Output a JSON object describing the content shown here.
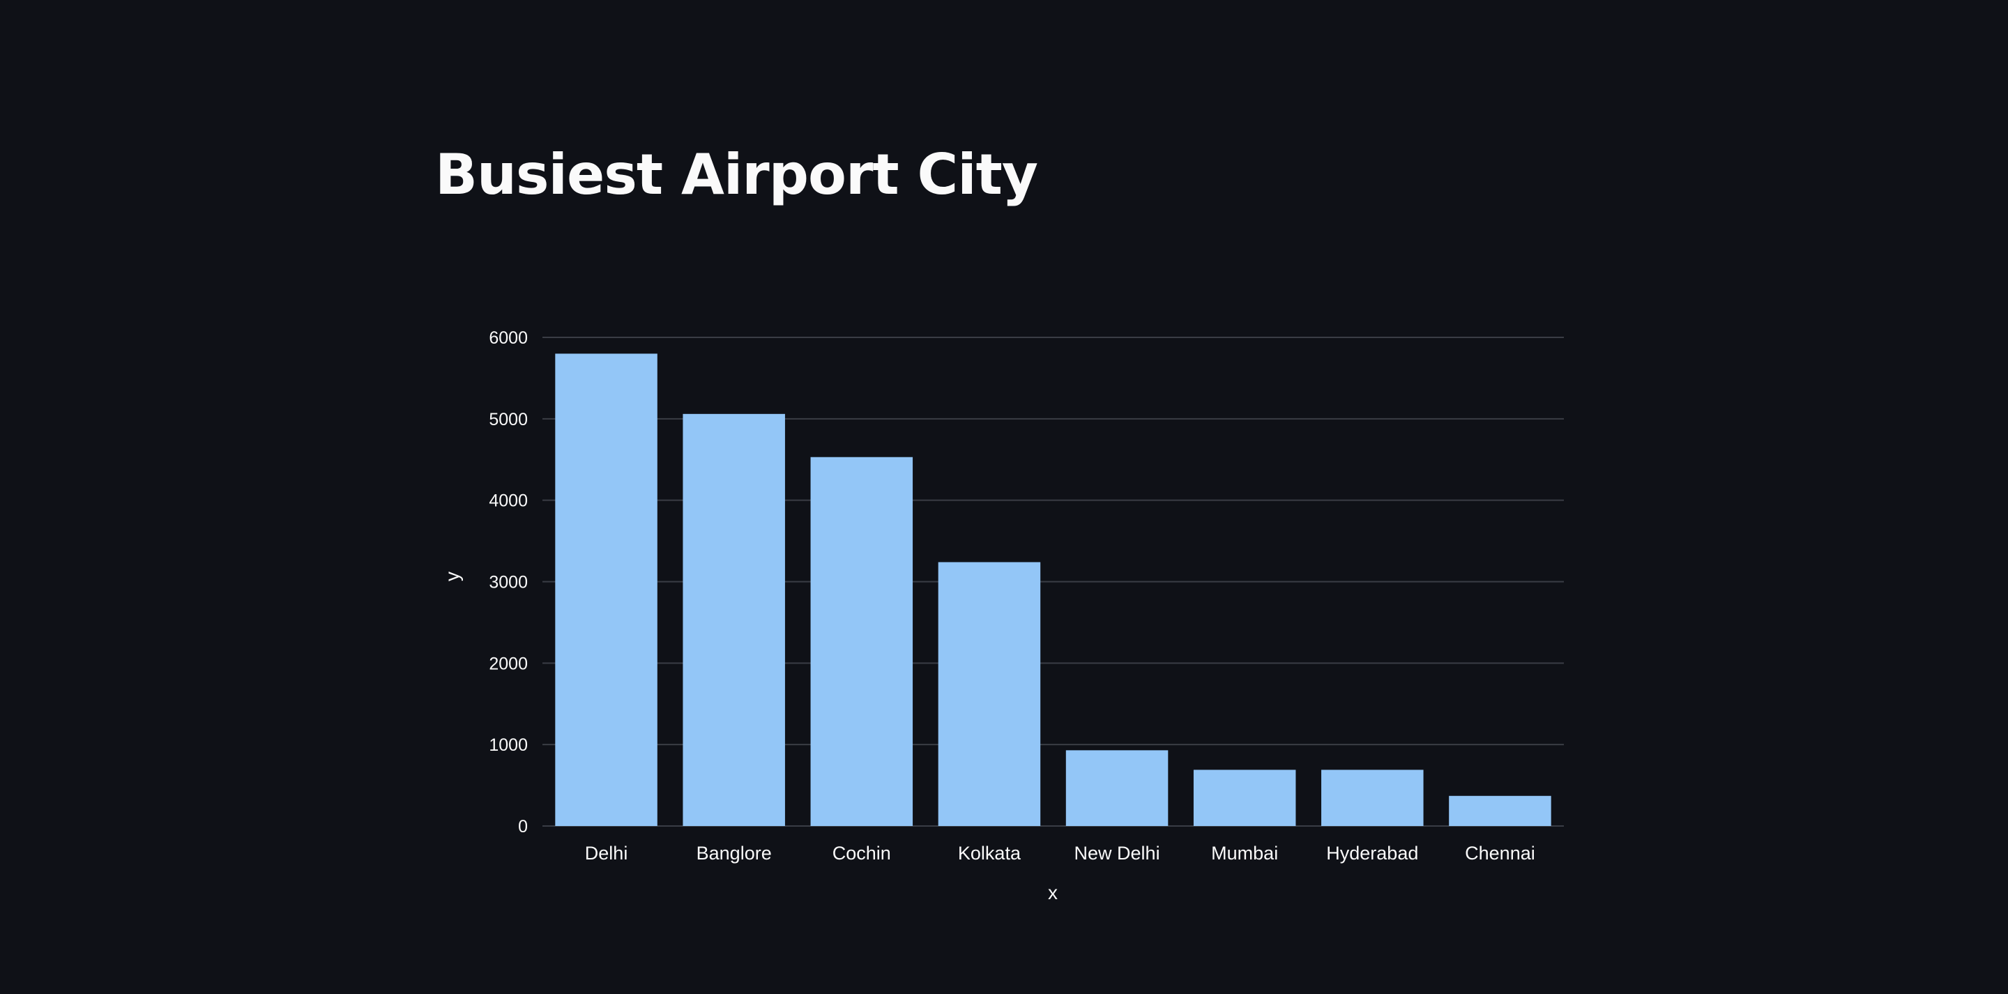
{
  "page": {
    "title": "Busiest Airport City"
  },
  "colors": {
    "background": "#0f1117",
    "bar": "#93c6f7",
    "grid": "#3a3d45",
    "text": "#fafafa"
  },
  "chart_data": {
    "type": "bar",
    "categories": [
      "Delhi",
      "Banglore",
      "Cochin",
      "Kolkata",
      "New Delhi",
      "Mumbai",
      "Hyderabad",
      "Chennai"
    ],
    "values": [
      5800,
      5060,
      4530,
      3240,
      930,
      690,
      690,
      370
    ],
    "xlabel": "x",
    "ylabel": "y",
    "ylim": [
      0,
      6000
    ],
    "yticks": [
      0,
      1000,
      2000,
      3000,
      4000,
      5000,
      6000
    ],
    "grid": true,
    "legend": "none"
  }
}
